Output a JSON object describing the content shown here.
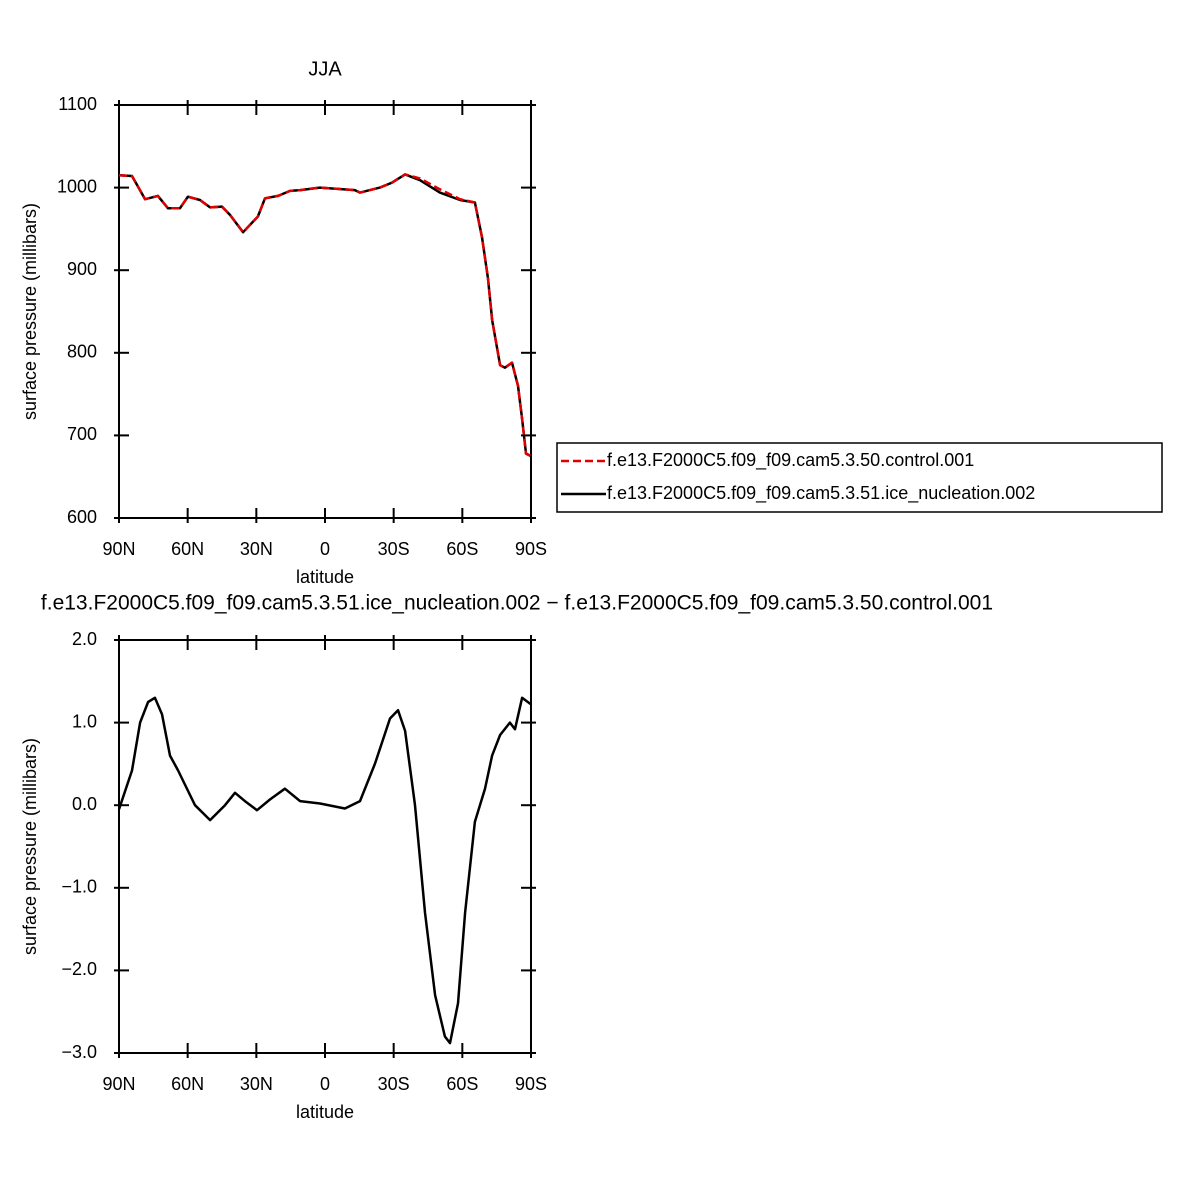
{
  "chart_data": [
    {
      "type": "line",
      "title": "JJA",
      "xlabel": "latitude",
      "ylabel": "surface pressure (millibars)",
      "x": [
        90,
        84.3,
        78.6,
        73,
        68.6,
        63.4,
        59.9,
        54.6,
        50.2,
        45,
        41.5,
        35.8,
        29.3,
        26.2,
        20.5,
        15.3,
        10.9,
        2.2,
        -13,
        -15.3,
        -24,
        -29.3,
        -35,
        -41.5,
        -50.2,
        -59,
        -65.5,
        -68.6,
        -71.2,
        -73,
        -76.5,
        -78.6,
        -81.7,
        -84.3,
        -86.1,
        -87.8,
        -90
      ],
      "series": [
        {
          "name": "f.e13.F2000C5.f09_f09.cam5.3.50.control.001",
          "color": "#e00000",
          "dashed": true,
          "values": [
            1015,
            1014,
            986,
            990,
            975,
            975,
            989,
            985,
            976,
            977,
            967,
            946,
            965,
            987,
            990,
            996,
            997,
            1000,
            997,
            994,
            1000,
            1006,
            1016,
            1011,
            998,
            986,
            982,
            940,
            890,
            840,
            785,
            782,
            788,
            760,
            720,
            678,
            675
          ]
        },
        {
          "name": "f.e13.F2000C5.f09_f09.cam5.3.51.ice_nucleation.002",
          "color": "#000000",
          "dashed": false,
          "values": [
            1015,
            1014,
            986,
            990,
            975,
            975,
            989,
            985,
            976,
            977,
            967,
            946,
            965,
            987,
            990,
            996,
            997,
            1000,
            997,
            994,
            1000,
            1006,
            1016,
            1009,
            994,
            985,
            982,
            940,
            890,
            840,
            785,
            782,
            788,
            760,
            720,
            678,
            675
          ]
        }
      ],
      "xlim": [
        90,
        -90
      ],
      "ylim": [
        600,
        1100
      ],
      "xticks": [
        {
          "value": 90,
          "label": "90N"
        },
        {
          "value": 60,
          "label": "60N"
        },
        {
          "value": 30,
          "label": "30N"
        },
        0,
        {
          "value": -30,
          "label": "30S"
        },
        {
          "value": -60,
          "label": "60S"
        },
        {
          "value": -90,
          "label": "90S"
        }
      ],
      "yticks": [
        600,
        700,
        800,
        900,
        1000,
        1100
      ],
      "legend": "right"
    },
    {
      "type": "line",
      "title": "f.e13.F2000C5.f09_f09.cam5.3.51.ice_nucleation.002 − f.e13.F2000C5.f09_f09.cam5.3.50.control.001",
      "xlabel": "latitude",
      "ylabel": "surface pressure (millibars)",
      "x": [
        90,
        84.3,
        80.8,
        77.3,
        74.3,
        71.2,
        67.7,
        64.2,
        61.2,
        56.8,
        50.2,
        43.7,
        39.3,
        35,
        29.7,
        24,
        17.5,
        10.9,
        2.2,
        -8.7,
        -15.3,
        -21.8,
        -28.4,
        -31.9,
        -35,
        -39.3,
        -43.7,
        -48.1,
        -52.4,
        -54.6,
        -58.1,
        -61.2,
        -65.5,
        -69.9,
        -73,
        -76.5,
        -80.8,
        -83,
        -86.1,
        -90
      ],
      "series": [
        {
          "color": "#000000",
          "dashed": false,
          "values": [
            -0.05,
            0.42,
            1.0,
            1.25,
            1.3,
            1.1,
            0.6,
            0.42,
            0.25,
            0.0,
            -0.18,
            0.0,
            0.15,
            0.05,
            -0.06,
            0.07,
            0.2,
            0.05,
            0.02,
            -0.04,
            0.05,
            0.5,
            1.05,
            1.15,
            0.9,
            0.0,
            -1.3,
            -2.3,
            -2.8,
            -2.88,
            -2.4,
            -1.3,
            -0.2,
            0.2,
            0.6,
            0.85,
            1.0,
            0.92,
            1.3,
            1.22
          ]
        }
      ],
      "xlim": [
        90,
        -90
      ],
      "ylim": [
        -3,
        2
      ],
      "xticks": [
        {
          "value": 90,
          "label": "90N"
        },
        {
          "value": 60,
          "label": "60N"
        },
        {
          "value": 30,
          "label": "30N"
        },
        0,
        {
          "value": -30,
          "label": "30S"
        },
        {
          "value": -60,
          "label": "60S"
        },
        {
          "value": -90,
          "label": "90S"
        }
      ],
      "yticks": [
        {
          "value": -3,
          "label": "−3.0"
        },
        {
          "value": -2,
          "label": "−2.0"
        },
        {
          "value": -1,
          "label": "−1.0"
        },
        {
          "value": 0,
          "label": "0.0"
        },
        {
          "value": 1,
          "label": "1.0"
        },
        {
          "value": 2,
          "label": "2.0"
        }
      ]
    }
  ]
}
